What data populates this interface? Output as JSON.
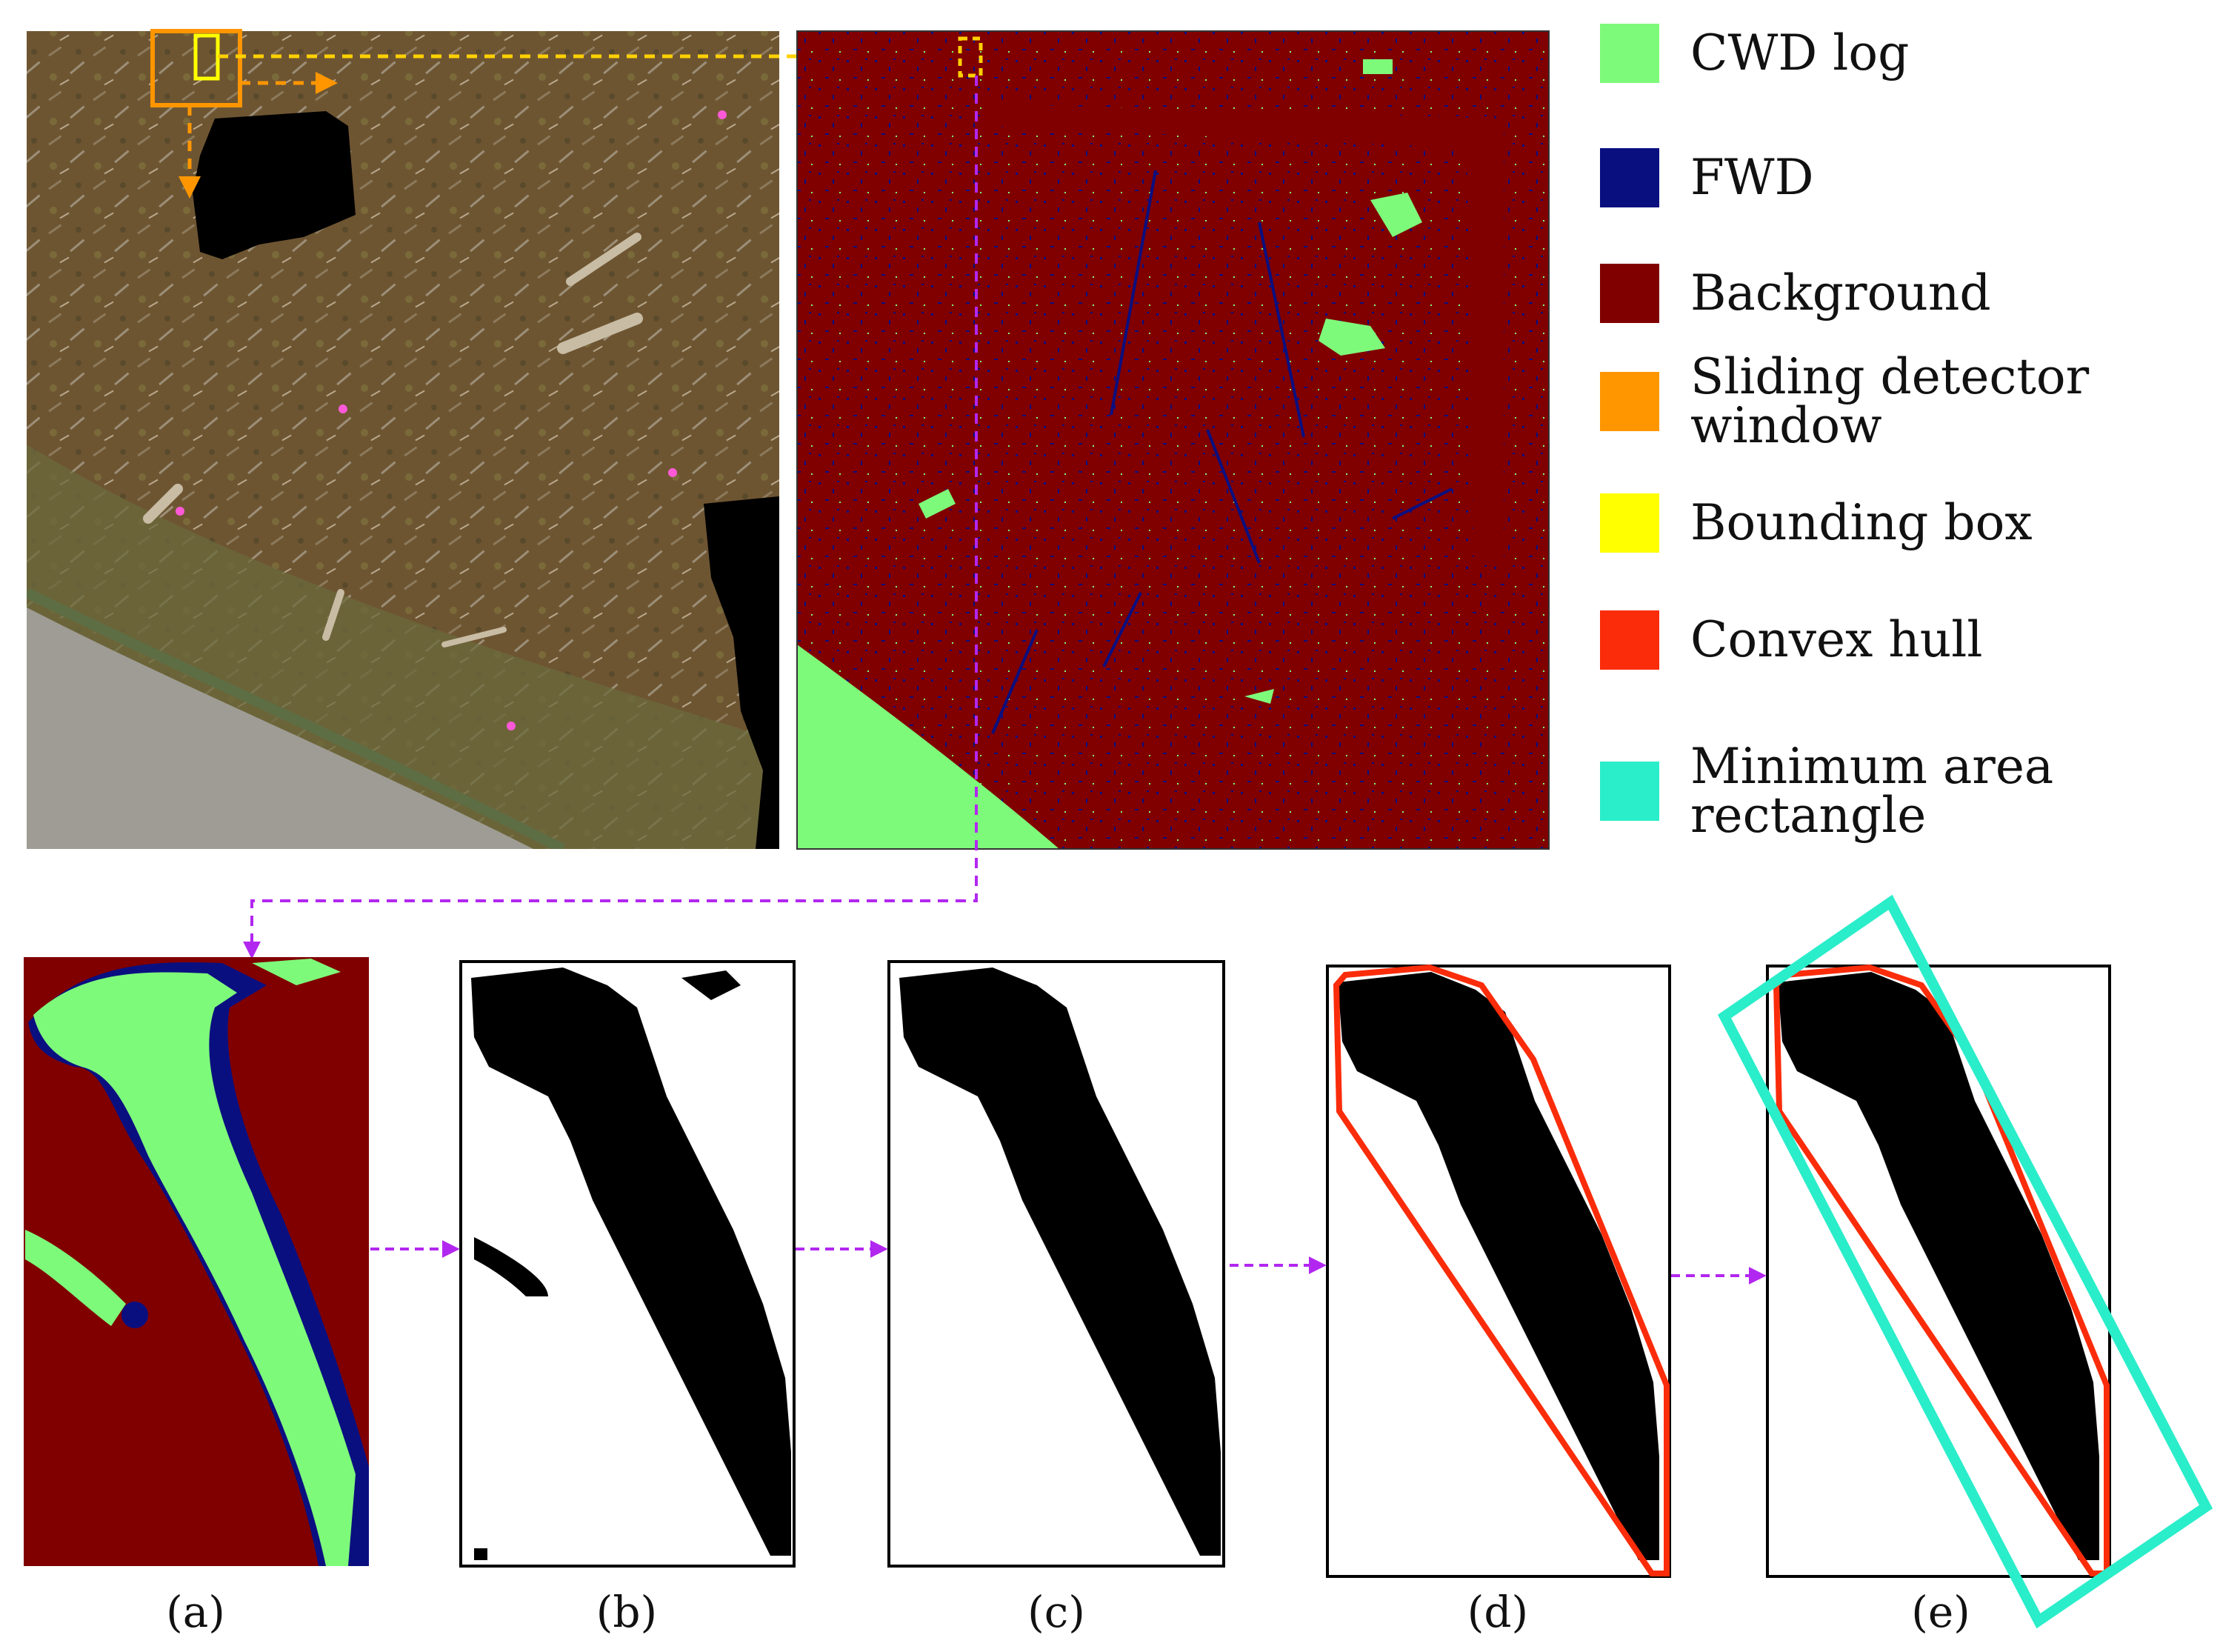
{
  "legend": {
    "items": [
      {
        "key": "cwd",
        "label_lines": [
          "CWD log"
        ],
        "color": "#7EFA7A"
      },
      {
        "key": "fwd",
        "label_lines": [
          "FWD"
        ],
        "color": "#0A0F80"
      },
      {
        "key": "background",
        "label_lines": [
          "Background"
        ],
        "color": "#800000"
      },
      {
        "key": "sliding",
        "label_lines": [
          "Sliding detector",
          "window"
        ],
        "color": "#FF9600"
      },
      {
        "key": "bbox",
        "label_lines": [
          "Bounding box"
        ],
        "color": "#FFFF00"
      },
      {
        "key": "hull",
        "label_lines": [
          "Convex hull"
        ],
        "color": "#FA2C0A"
      },
      {
        "key": "minrect",
        "label_lines": [
          "Minimum area",
          "rectangle"
        ],
        "color": "#2AEDCA"
      }
    ]
  },
  "captions": [
    "(a)",
    "(b)",
    "(c)",
    "(d)",
    "(e)"
  ],
  "colors": {
    "arrow_purple": "#B227F0",
    "arrow_yellow": "#FFD000",
    "arrow_orange": "#FF9600",
    "ortho_soil": "#6E5532",
    "ortho_grass": "#6B6A3C",
    "road": "#9E9C94"
  }
}
